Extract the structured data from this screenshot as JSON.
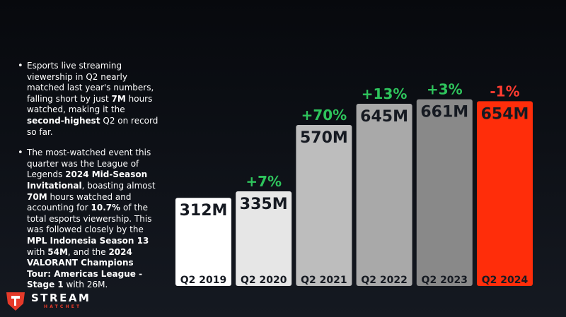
{
  "bullets": [
    [
      {
        "t": "Esports live streaming viewership in Q2 nearly matched last year's numbers, falling short by just "
      },
      {
        "t": "7M",
        "b": true
      },
      {
        "t": " hours watched, making it the "
      },
      {
        "t": "second-highest",
        "b": true
      },
      {
        "t": " Q2 on record so far."
      }
    ],
    [
      {
        "t": "The most-watched event this quarter was the League of Legends "
      },
      {
        "t": "2024 Mid-Season Invitational",
        "b": true
      },
      {
        "t": ", boasting almost "
      },
      {
        "t": "70M",
        "b": true
      },
      {
        "t": " hours watched and accounting for "
      },
      {
        "t": "10.7%",
        "b": true
      },
      {
        "t": " of the total esports viewership. This was followed closely by the "
      },
      {
        "t": "MPL Indonesia Season 13",
        "b": true
      },
      {
        "t": " with "
      },
      {
        "t": "54M",
        "b": true
      },
      {
        "t": ", and the "
      },
      {
        "t": "2024 VALORANT Champions Tour: Americas League - Stage 1",
        "b": true
      },
      {
        "t": " with 26M."
      }
    ]
  ],
  "chart_data": {
    "type": "bar",
    "categories": [
      "Q2 2019",
      "Q2 2020",
      "Q2 2021",
      "Q2 2022",
      "Q2 2023",
      "Q2 2024"
    ],
    "values": [
      312,
      335,
      570,
      645,
      661,
      654
    ],
    "value_labels": [
      "312M",
      "335M",
      "570M",
      "645M",
      "661M",
      "654M"
    ],
    "changes": [
      "",
      "+7%",
      "+70%",
      "+13%",
      "+3%",
      "-1%"
    ],
    "bar_colors": [
      "#ffffff",
      "#e6e6e6",
      "#bdbdbd",
      "#a9a9a9",
      "#898989",
      "#ff2d0a"
    ],
    "change_colors": {
      "up": "#2ec45c",
      "down": "#ff3b30"
    },
    "label_color": "#161a22",
    "ylim": [
      0,
      700
    ]
  },
  "logo": {
    "main": "STREAM",
    "sub": "HATCHET",
    "accent": "#e63a2a"
  }
}
